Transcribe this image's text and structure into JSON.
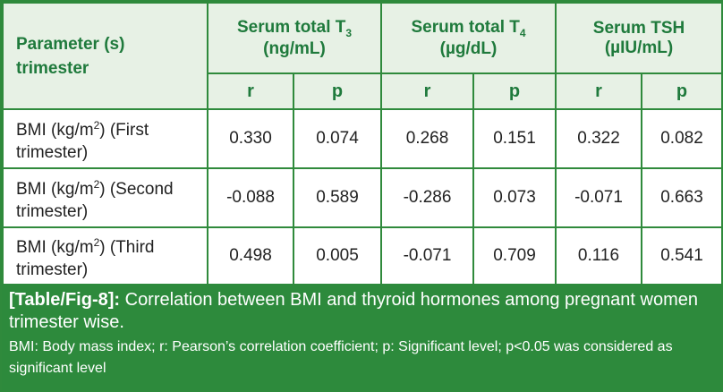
{
  "table": {
    "header": {
      "param_line1": "Parameter (s)",
      "param_line2": "trimester",
      "t3_label": "Serum total T",
      "t3_sub": "3",
      "t3_unit": "(ng/mL)",
      "t4_label": "Serum total T",
      "t4_sub": "4",
      "t4_unit": "(µg/dL)",
      "tsh_label": "Serum TSH",
      "tsh_unit": "(µIU/mL)",
      "sub_r": "r",
      "sub_p": "p"
    },
    "rows": [
      {
        "param_a": "BMI (kg/m",
        "param_sup": "2",
        "param_b": ") (First",
        "param_c": "trimester)",
        "t3_r": "0.330",
        "t3_p": "0.074",
        "t4_r": "0.268",
        "t4_p": "0.151",
        "tsh_r": "0.322",
        "tsh_p": "0.082"
      },
      {
        "param_a": "BMI (kg/m",
        "param_sup": "2",
        "param_b": ") (Second",
        "param_c": "trimester)",
        "t3_r": "-0.088",
        "t3_p": "0.589",
        "t4_r": "-0.286",
        "t4_p": "0.073",
        "tsh_r": "-0.071",
        "tsh_p": "0.663"
      },
      {
        "param_a": "BMI (kg/m",
        "param_sup": "2",
        "param_b": ") (Third",
        "param_c": "trimester)",
        "t3_r": "0.498",
        "t3_p": "0.005",
        "t4_r": "-0.071",
        "t4_p": "0.709",
        "tsh_r": "0.116",
        "tsh_p": "0.541"
      }
    ]
  },
  "caption": {
    "label": "[Table/Fig-8]:",
    "text": " Correlation between BMI and thyroid hormones among pregnant women trimester wise.",
    "note": "BMI: Body mass index; r: Pearson’s correlation coefficient; p: Significant level; p<0.05 was considered as significant level"
  },
  "colors": {
    "border": "#2f8a3c",
    "header_bg": "#e7f1e5",
    "header_text": "#1f7a3c",
    "caption_bg": "#2d8a3c"
  }
}
